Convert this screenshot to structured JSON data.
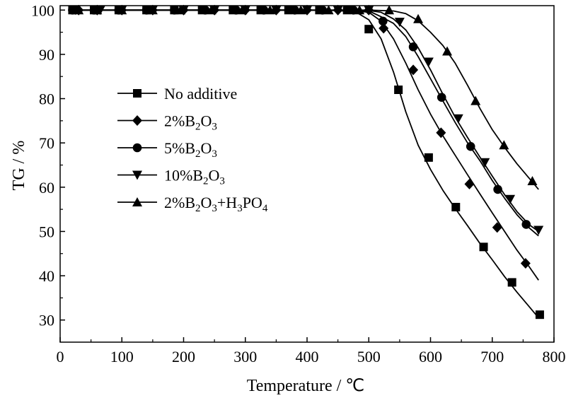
{
  "chart_data": {
    "type": "line",
    "title": "",
    "xlabel": "Temperature / ℃",
    "ylabel": "TG / %",
    "xlim": [
      0,
      800
    ],
    "ylim": [
      25,
      101
    ],
    "xticks": [
      0,
      100,
      200,
      300,
      400,
      500,
      600,
      700,
      800
    ],
    "yticks": [
      30,
      40,
      50,
      60,
      70,
      80,
      90,
      100
    ],
    "x_tick_labels": [
      "0",
      "100",
      "200",
      "300",
      "400",
      "500",
      "600",
      "700",
      "800"
    ],
    "y_tick_labels": [
      "30",
      "40",
      "50",
      "60",
      "70",
      "80",
      "90",
      "100"
    ],
    "grid": false,
    "legend_position": "center-left",
    "series": [
      {
        "name": "No additive",
        "legend_parts": [
          {
            "t": "No additive"
          }
        ],
        "marker": "square",
        "curve": [
          [
            20,
            100
          ],
          [
            100,
            100
          ],
          [
            200,
            100
          ],
          [
            300,
            100
          ],
          [
            400,
            100
          ],
          [
            450,
            99.9
          ],
          [
            480,
            99.5
          ],
          [
            500,
            97.8
          ],
          [
            520,
            93.5
          ],
          [
            540,
            86
          ],
          [
            560,
            77
          ],
          [
            580,
            69.5
          ],
          [
            600,
            64
          ],
          [
            620,
            59.3
          ],
          [
            640,
            55.2
          ],
          [
            660,
            51.3
          ],
          [
            680,
            47.3
          ],
          [
            700,
            43.6
          ],
          [
            720,
            39.8
          ],
          [
            740,
            36.3
          ],
          [
            760,
            33
          ],
          [
            775,
            30.5
          ]
        ],
        "markers": [
          [
            20,
            100
          ],
          [
            55,
            100
          ],
          [
            95,
            100
          ],
          [
            140,
            100
          ],
          [
            185,
            100
          ],
          [
            230,
            100
          ],
          [
            280,
            100
          ],
          [
            325,
            100
          ],
          [
            370,
            100
          ],
          [
            420,
            100
          ],
          [
            465,
            100
          ],
          [
            500,
            95.7
          ],
          [
            548,
            82
          ],
          [
            597,
            66.7
          ],
          [
            641,
            55.5
          ],
          [
            686,
            46.5
          ],
          [
            732,
            38.5
          ],
          [
            777,
            31.2
          ]
        ]
      },
      {
        "name": "2%B2O3",
        "legend_parts": [
          {
            "t": "2%B"
          },
          {
            "t": "2",
            "sub": true
          },
          {
            "t": "O"
          },
          {
            "t": "3",
            "sub": true
          }
        ],
        "marker": "diamond",
        "curve": [
          [
            20,
            100
          ],
          [
            100,
            100
          ],
          [
            200,
            100
          ],
          [
            300,
            100
          ],
          [
            400,
            100
          ],
          [
            470,
            99.9
          ],
          [
            500,
            99.5
          ],
          [
            520,
            97.5
          ],
          [
            540,
            93.5
          ],
          [
            560,
            88
          ],
          [
            580,
            82
          ],
          [
            600,
            76.5
          ],
          [
            620,
            71.6
          ],
          [
            640,
            67.2
          ],
          [
            660,
            62.8
          ],
          [
            680,
            58.5
          ],
          [
            700,
            54.2
          ],
          [
            720,
            50
          ],
          [
            740,
            45.8
          ],
          [
            760,
            42
          ],
          [
            775,
            39
          ]
        ],
        "markers": [
          [
            30,
            100
          ],
          [
            60,
            100
          ],
          [
            100,
            100
          ],
          [
            150,
            100
          ],
          [
            200,
            100
          ],
          [
            250,
            100
          ],
          [
            300,
            100
          ],
          [
            350,
            100
          ],
          [
            400,
            100
          ],
          [
            450,
            100
          ],
          [
            500,
            100
          ],
          [
            524,
            95.9
          ],
          [
            572,
            86.5
          ],
          [
            617,
            72.3
          ],
          [
            663,
            60.7
          ],
          [
            708,
            50.9
          ],
          [
            754,
            42.8
          ]
        ]
      },
      {
        "name": "5%B2O3",
        "legend_parts": [
          {
            "t": "5%B"
          },
          {
            "t": "2",
            "sub": true
          },
          {
            "t": "O"
          },
          {
            "t": "3",
            "sub": true
          }
        ],
        "marker": "circle",
        "curve": [
          [
            20,
            100
          ],
          [
            100,
            100
          ],
          [
            200,
            100
          ],
          [
            300,
            100
          ],
          [
            400,
            100
          ],
          [
            480,
            99.9
          ],
          [
            500,
            99.8
          ],
          [
            520,
            98.5
          ],
          [
            540,
            97
          ],
          [
            560,
            94
          ],
          [
            580,
            89.5
          ],
          [
            600,
            84.5
          ],
          [
            620,
            79.5
          ],
          [
            640,
            74.6
          ],
          [
            660,
            70
          ],
          [
            680,
            66
          ],
          [
            700,
            61.5
          ],
          [
            720,
            57.5
          ],
          [
            740,
            53.8
          ],
          [
            760,
            50.8
          ],
          [
            775,
            49
          ]
        ],
        "markers": [
          [
            20,
            100
          ],
          [
            55,
            100
          ],
          [
            95,
            100
          ],
          [
            140,
            100
          ],
          [
            185,
            100
          ],
          [
            235,
            100
          ],
          [
            285,
            100
          ],
          [
            330,
            100
          ],
          [
            380,
            100
          ],
          [
            425,
            100
          ],
          [
            475,
            100
          ],
          [
            523,
            97.5
          ],
          [
            572,
            91.7
          ],
          [
            618,
            80.3
          ],
          [
            665,
            69.2
          ],
          [
            709,
            59.5
          ],
          [
            755,
            51.6
          ]
        ]
      },
      {
        "name": "10%B2O3",
        "legend_parts": [
          {
            "t": "10%B"
          },
          {
            "t": "2",
            "sub": true
          },
          {
            "t": "O"
          },
          {
            "t": "3",
            "sub": true
          }
        ],
        "marker": "triangle-down",
        "curve": [
          [
            20,
            100
          ],
          [
            100,
            100
          ],
          [
            200,
            100
          ],
          [
            300,
            100
          ],
          [
            400,
            100
          ],
          [
            480,
            100
          ],
          [
            500,
            99.9
          ],
          [
            520,
            99.5
          ],
          [
            540,
            98
          ],
          [
            560,
            95.5
          ],
          [
            580,
            91.5
          ],
          [
            600,
            86.5
          ],
          [
            620,
            81
          ],
          [
            640,
            75.8
          ],
          [
            660,
            71.2
          ],
          [
            680,
            66.8
          ],
          [
            700,
            62.5
          ],
          [
            720,
            58.3
          ],
          [
            740,
            54.5
          ],
          [
            760,
            51.5
          ],
          [
            775,
            50
          ]
        ],
        "markers": [
          [
            25,
            100
          ],
          [
            65,
            100
          ],
          [
            100,
            100
          ],
          [
            150,
            100
          ],
          [
            200,
            100
          ],
          [
            250,
            100
          ],
          [
            300,
            100
          ],
          [
            350,
            100
          ],
          [
            400,
            100
          ],
          [
            450,
            100
          ],
          [
            500,
            100
          ],
          [
            550,
            97.3
          ],
          [
            597,
            88.3
          ],
          [
            645,
            75.5
          ],
          [
            688,
            65.6
          ],
          [
            729,
            57.3
          ],
          [
            775,
            50.3
          ]
        ]
      },
      {
        "name": "2%B2O3+H3PO4",
        "legend_parts": [
          {
            "t": "2%B"
          },
          {
            "t": "2",
            "sub": true
          },
          {
            "t": "O"
          },
          {
            "t": "3",
            "sub": true
          },
          {
            "t": "+H"
          },
          {
            "t": "3",
            "sub": true
          },
          {
            "t": "PO"
          },
          {
            "t": "4",
            "sub": true
          }
        ],
        "marker": "triangle-up",
        "curve": [
          [
            20,
            100
          ],
          [
            100,
            100
          ],
          [
            200,
            100
          ],
          [
            300,
            100
          ],
          [
            400,
            100
          ],
          [
            500,
            100
          ],
          [
            540,
            99.8
          ],
          [
            560,
            99.2
          ],
          [
            580,
            97.6
          ],
          [
            600,
            95
          ],
          [
            620,
            92
          ],
          [
            640,
            88
          ],
          [
            660,
            83
          ],
          [
            680,
            77.8
          ],
          [
            700,
            73
          ],
          [
            720,
            69
          ],
          [
            740,
            65.3
          ],
          [
            760,
            62
          ],
          [
            775,
            59.5
          ]
        ],
        "markers": [
          [
            30,
            100
          ],
          [
            60,
            100
          ],
          [
            100,
            100
          ],
          [
            150,
            100
          ],
          [
            195,
            100
          ],
          [
            245,
            100
          ],
          [
            295,
            100
          ],
          [
            340,
            100
          ],
          [
            390,
            100
          ],
          [
            435,
            100
          ],
          [
            485,
            100
          ],
          [
            533,
            100
          ],
          [
            580,
            98
          ],
          [
            627,
            90.7
          ],
          [
            673,
            79.5
          ],
          [
            719,
            69.5
          ],
          [
            765,
            61.4
          ]
        ]
      }
    ]
  }
}
